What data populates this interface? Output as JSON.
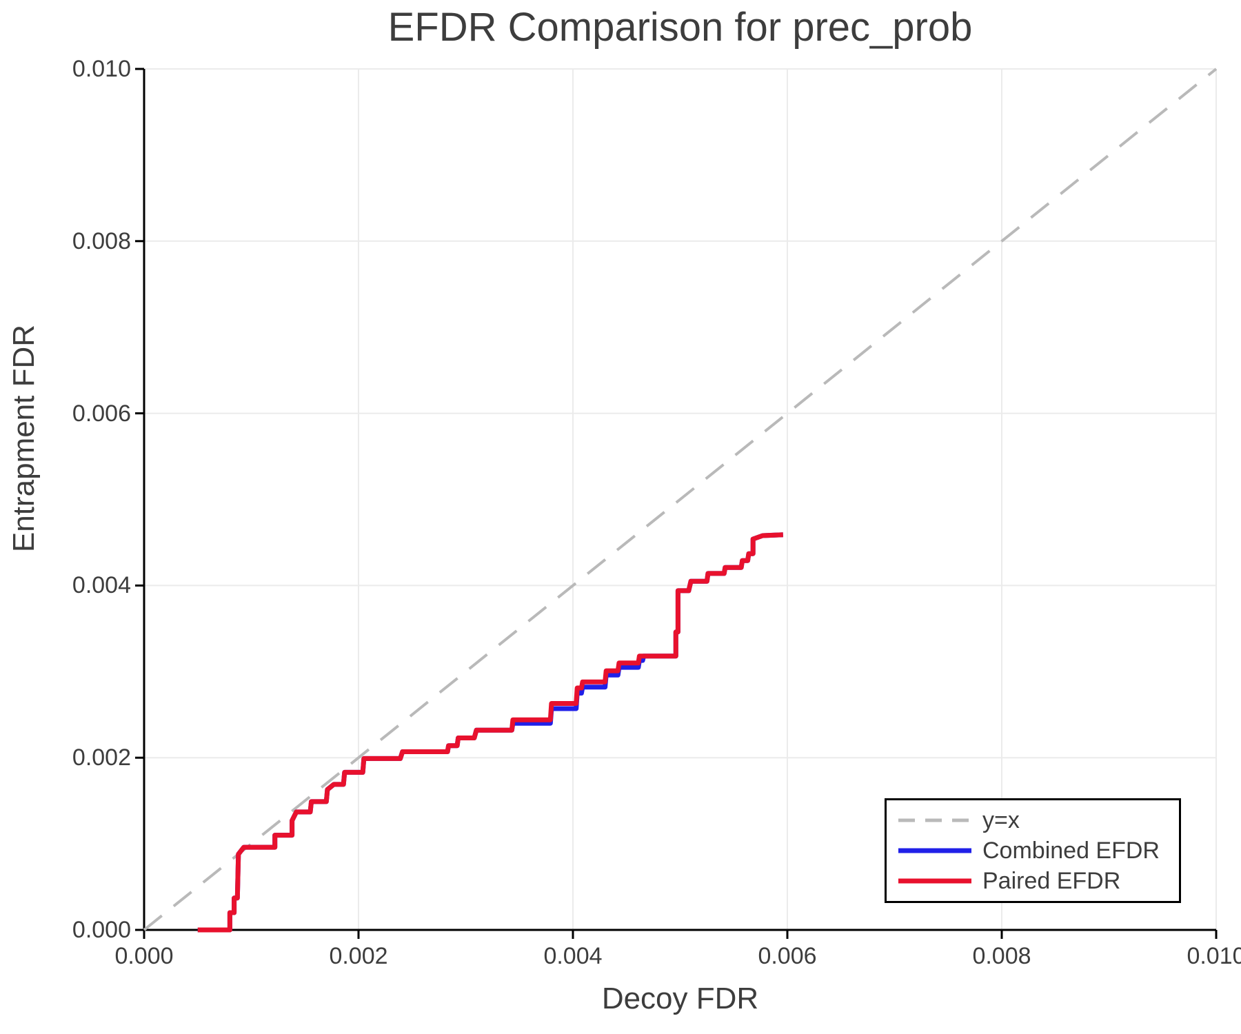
{
  "title": "EFDR Comparison for prec_prob",
  "axes": {
    "x": {
      "label": "Decoy FDR",
      "ticks": [
        "0.000",
        "0.002",
        "0.004",
        "0.006",
        "0.008",
        "0.010"
      ]
    },
    "y": {
      "label": "Entrapment FDR",
      "ticks": [
        "0.000",
        "0.002",
        "0.004",
        "0.006",
        "0.008",
        "0.010"
      ]
    }
  },
  "legend": {
    "items": [
      {
        "label": "y=x"
      },
      {
        "label": "Combined EFDR"
      },
      {
        "label": "Paired EFDR"
      }
    ]
  },
  "colors": {
    "background": "#ffffff",
    "text": "#3d3d3d",
    "grid": "#ebebeb",
    "axis": "#000000",
    "identity_line": "#b9b9b9",
    "combined_efdr": "#2020e8",
    "paired_efdr": "#e8112d"
  },
  "chart_data": {
    "type": "line",
    "title": "EFDR Comparison for prec_prob",
    "xlabel": "Decoy FDR",
    "ylabel": "Entrapment FDR",
    "xlim": [
      0,
      0.01
    ],
    "ylim": [
      0,
      0.01
    ],
    "grid": true,
    "legend_position": "lower right",
    "series": [
      {
        "name": "y=x",
        "style": "dashed",
        "color": "#b9b9b9",
        "width": 4,
        "points": [
          [
            0,
            0
          ],
          [
            0.01,
            0.01
          ]
        ]
      },
      {
        "name": "Combined EFDR",
        "style": "solid",
        "color": "#2020e8",
        "width": 7,
        "points": [
          [
            0.0005,
            0
          ],
          [
            0.0008,
            0
          ],
          [
            0.0008,
            0.0002
          ],
          [
            0.00084,
            0.0002
          ],
          [
            0.00084,
            0.00037
          ],
          [
            0.00087,
            0.00037
          ],
          [
            0.00088,
            0.00088
          ],
          [
            0.00093,
            0.00096
          ],
          [
            0.00122,
            0.00096
          ],
          [
            0.00122,
            0.0011
          ],
          [
            0.00138,
            0.0011
          ],
          [
            0.00138,
            0.00127
          ],
          [
            0.00142,
            0.00137
          ],
          [
            0.00155,
            0.00137
          ],
          [
            0.00156,
            0.00149
          ],
          [
            0.0017,
            0.00149
          ],
          [
            0.00171,
            0.00163
          ],
          [
            0.00177,
            0.00169
          ],
          [
            0.00186,
            0.00169
          ],
          [
            0.00187,
            0.00183
          ],
          [
            0.00204,
            0.00183
          ],
          [
            0.00205,
            0.00199
          ],
          [
            0.00239,
            0.00199
          ],
          [
            0.00241,
            0.00207
          ],
          [
            0.00283,
            0.00207
          ],
          [
            0.00284,
            0.00214
          ],
          [
            0.00292,
            0.00214
          ],
          [
            0.00293,
            0.00223
          ],
          [
            0.00308,
            0.00223
          ],
          [
            0.0031,
            0.00232
          ],
          [
            0.00343,
            0.00232
          ],
          [
            0.00344,
            0.0024
          ],
          [
            0.00379,
            0.0024
          ],
          [
            0.0038,
            0.00257
          ],
          [
            0.00403,
            0.00257
          ],
          [
            0.00404,
            0.00275
          ],
          [
            0.00408,
            0.00275
          ],
          [
            0.00409,
            0.00282
          ],
          [
            0.0043,
            0.00282
          ],
          [
            0.00431,
            0.00296
          ],
          [
            0.00442,
            0.00296
          ],
          [
            0.00443,
            0.00305
          ],
          [
            0.00461,
            0.00305
          ],
          [
            0.00462,
            0.00313
          ],
          [
            0.00465,
            0.00313
          ],
          [
            0.00466,
            0.00318
          ],
          [
            0.00496,
            0.00318
          ],
          [
            0.00496,
            0.00346
          ],
          [
            0.00498,
            0.00346
          ],
          [
            0.00498,
            0.00394
          ],
          [
            0.00508,
            0.00394
          ],
          [
            0.0051,
            0.00405
          ],
          [
            0.00525,
            0.00405
          ],
          [
            0.00526,
            0.00414
          ],
          [
            0.00541,
            0.00414
          ],
          [
            0.00542,
            0.00421
          ],
          [
            0.00557,
            0.00421
          ],
          [
            0.00558,
            0.00429
          ],
          [
            0.00563,
            0.00429
          ],
          [
            0.00564,
            0.00437
          ],
          [
            0.00568,
            0.00437
          ],
          [
            0.00568,
            0.00454
          ],
          [
            0.00577,
            0.00458
          ],
          [
            0.00596,
            0.00459
          ]
        ]
      },
      {
        "name": "Paired EFDR",
        "style": "solid",
        "color": "#e8112d",
        "width": 7,
        "points": [
          [
            0.0005,
            0
          ],
          [
            0.0008,
            0
          ],
          [
            0.0008,
            0.0002
          ],
          [
            0.00084,
            0.0002
          ],
          [
            0.00084,
            0.00037
          ],
          [
            0.00087,
            0.00037
          ],
          [
            0.00088,
            0.00088
          ],
          [
            0.00093,
            0.00096
          ],
          [
            0.00122,
            0.00096
          ],
          [
            0.00122,
            0.0011
          ],
          [
            0.00138,
            0.0011
          ],
          [
            0.00138,
            0.00127
          ],
          [
            0.00142,
            0.00137
          ],
          [
            0.00155,
            0.00137
          ],
          [
            0.00156,
            0.00149
          ],
          [
            0.0017,
            0.00149
          ],
          [
            0.00171,
            0.00163
          ],
          [
            0.00177,
            0.00169
          ],
          [
            0.00186,
            0.00169
          ],
          [
            0.00187,
            0.00183
          ],
          [
            0.00204,
            0.00183
          ],
          [
            0.00205,
            0.00199
          ],
          [
            0.00239,
            0.00199
          ],
          [
            0.00241,
            0.00207
          ],
          [
            0.00283,
            0.00207
          ],
          [
            0.00284,
            0.00214
          ],
          [
            0.00292,
            0.00214
          ],
          [
            0.00293,
            0.00223
          ],
          [
            0.00308,
            0.00223
          ],
          [
            0.0031,
            0.00232
          ],
          [
            0.00343,
            0.00232
          ],
          [
            0.00344,
            0.00244
          ],
          [
            0.00379,
            0.00244
          ],
          [
            0.0038,
            0.00263
          ],
          [
            0.00403,
            0.00263
          ],
          [
            0.00404,
            0.00281
          ],
          [
            0.00408,
            0.00281
          ],
          [
            0.00409,
            0.00288
          ],
          [
            0.0043,
            0.00288
          ],
          [
            0.00431,
            0.00301
          ],
          [
            0.00442,
            0.00301
          ],
          [
            0.00443,
            0.0031
          ],
          [
            0.00461,
            0.0031
          ],
          [
            0.00462,
            0.00318
          ],
          [
            0.00496,
            0.00318
          ],
          [
            0.00496,
            0.00346
          ],
          [
            0.00498,
            0.00346
          ],
          [
            0.00498,
            0.00394
          ],
          [
            0.00508,
            0.00394
          ],
          [
            0.0051,
            0.00405
          ],
          [
            0.00525,
            0.00405
          ],
          [
            0.00526,
            0.00414
          ],
          [
            0.00541,
            0.00414
          ],
          [
            0.00542,
            0.00421
          ],
          [
            0.00557,
            0.00421
          ],
          [
            0.00558,
            0.00429
          ],
          [
            0.00563,
            0.00429
          ],
          [
            0.00564,
            0.00437
          ],
          [
            0.00568,
            0.00437
          ],
          [
            0.00568,
            0.00454
          ],
          [
            0.00577,
            0.00458
          ],
          [
            0.00596,
            0.00459
          ]
        ]
      }
    ]
  }
}
